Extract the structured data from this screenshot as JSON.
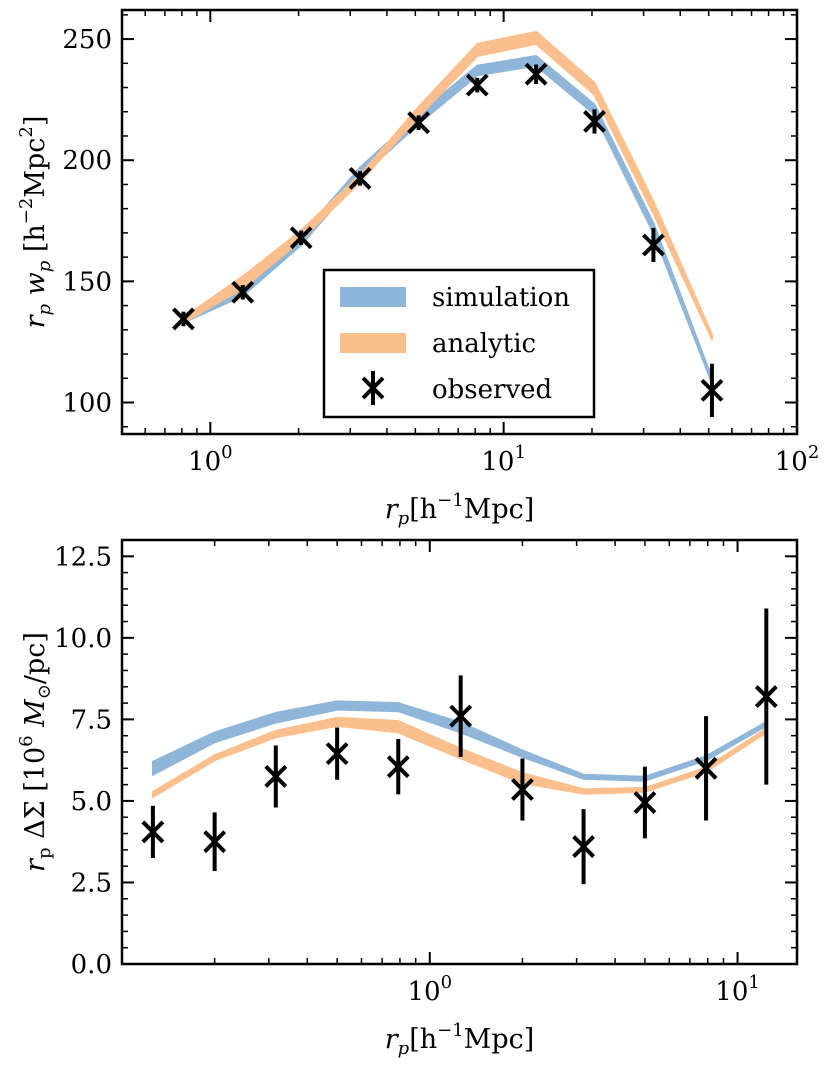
{
  "colors": {
    "simulation": "#8fb6d8",
    "analytic": "#fbbf8e",
    "observed": "#000000"
  },
  "chart_data": [
    {
      "type": "line",
      "xscale": "log",
      "xlim": [
        0.5,
        100
      ],
      "ylim": [
        87,
        262
      ],
      "xlabel": {
        "base": "r",
        "sub": "p",
        "open": "[h",
        "sup": "−1",
        "close": "Mpc]"
      },
      "ylabel": {
        "a": "r",
        "a_sub": "p",
        "b": " w",
        "b_sub": "p",
        "c": " [h",
        "c_sup": "−2",
        "d": "Mpc",
        "d_sup": "2",
        "e": "]"
      },
      "x_ticks": [
        {
          "value": 1,
          "label": "10",
          "exp": "0"
        },
        {
          "value": 10,
          "label": "10",
          "exp": "1"
        },
        {
          "value": 100,
          "label": "10",
          "exp": "2"
        }
      ],
      "y_ticks": [
        {
          "value": 100,
          "label": "100"
        },
        {
          "value": 150,
          "label": "150"
        },
        {
          "value": 200,
          "label": "200"
        },
        {
          "value": 250,
          "label": "250"
        }
      ],
      "legend": {
        "position": "lower-center",
        "entries": [
          "simulation",
          "analytic",
          "observed"
        ]
      },
      "series": [
        {
          "name": "simulation",
          "x": [
            0.81,
            1.29,
            2.04,
            3.24,
            5.13,
            8.13,
            12.9,
            20.4,
            32.4,
            51.3
          ],
          "lower": [
            133,
            144,
            165,
            193,
            215,
            235,
            239,
            219,
            170,
            108
          ],
          "upper": [
            136,
            148,
            169,
            197,
            219,
            239,
            243,
            223,
            174,
            110
          ]
        },
        {
          "name": "analytic",
          "x": [
            0.81,
            1.29,
            2.04,
            3.24,
            5.13,
            8.13,
            12.9,
            20.4,
            32.4,
            51.3
          ],
          "lower": [
            133,
            147,
            167,
            191,
            218,
            243,
            248,
            227,
            178,
            126
          ],
          "upper": [
            135,
            152,
            171,
            194,
            222,
            248,
            253,
            232,
            183,
            128
          ]
        },
        {
          "name": "observed",
          "x": [
            0.81,
            1.29,
            2.04,
            3.24,
            5.13,
            8.13,
            12.9,
            20.4,
            32.4,
            51.3
          ],
          "y": [
            134.5,
            145.5,
            168,
            192.5,
            215.5,
            231,
            235.5,
            216,
            165,
            105
          ],
          "yerr": [
            3,
            3,
            3,
            3,
            3,
            3,
            4,
            5,
            7,
            11
          ]
        }
      ]
    },
    {
      "type": "line",
      "xscale": "log",
      "xlim": [
        0.1,
        15.6
      ],
      "ylim": [
        0,
        13
      ],
      "xlabel": {
        "base": "r",
        "sub": "p",
        "open": "[h",
        "sup": "−1",
        "close": "Mpc]"
      },
      "ylabel": {
        "a": "r",
        "a_sub": "p",
        "b": " ΔΣ [10",
        "b_sup": "6",
        "c": " M",
        "c_sub": "⊙",
        "d": "/pc]"
      },
      "x_ticks": [
        {
          "value": 1,
          "label": "10",
          "exp": "0"
        },
        {
          "value": 10,
          "label": "10",
          "exp": "1"
        }
      ],
      "y_ticks": [
        {
          "value": 0,
          "label": "0.0"
        },
        {
          "value": 2.5,
          "label": "2.5"
        },
        {
          "value": 5,
          "label": "5.0"
        },
        {
          "value": 7.5,
          "label": "7.5"
        },
        {
          "value": 10,
          "label": "10.0"
        },
        {
          "value": 12.5,
          "label": "12.5"
        }
      ],
      "series": [
        {
          "name": "simulation",
          "x": [
            0.126,
            0.2,
            0.316,
            0.5,
            0.79,
            1.26,
            2.0,
            3.16,
            5.0,
            7.9,
            12.4
          ],
          "lower": [
            5.8,
            6.8,
            7.4,
            7.8,
            7.75,
            7.1,
            6.35,
            5.68,
            5.62,
            6.25,
            7.3
          ],
          "upper": [
            6.2,
            7.1,
            7.7,
            8.05,
            8.0,
            7.4,
            6.55,
            5.8,
            5.74,
            6.37,
            7.42
          ]
        },
        {
          "name": "analytic",
          "x": [
            0.126,
            0.2,
            0.316,
            0.5,
            0.79,
            1.26,
            2.0,
            3.16,
            5.0,
            7.9,
            12.4
          ],
          "lower": [
            5.12,
            6.25,
            6.95,
            7.3,
            7.1,
            6.3,
            5.55,
            5.22,
            5.28,
            5.9,
            7.1
          ],
          "upper": [
            5.28,
            6.4,
            7.15,
            7.55,
            7.45,
            6.6,
            5.85,
            5.36,
            5.4,
            6.02,
            7.22
          ]
        },
        {
          "name": "observed",
          "x": [
            0.126,
            0.2,
            0.316,
            0.5,
            0.79,
            1.26,
            2.0,
            3.16,
            5.0,
            7.9,
            12.4
          ],
          "y": [
            4.05,
            3.75,
            5.75,
            6.45,
            6.05,
            7.6,
            5.35,
            3.6,
            4.95,
            6.0,
            8.2
          ],
          "yerr": [
            0.8,
            0.9,
            0.95,
            0.8,
            0.85,
            1.25,
            0.95,
            1.15,
            1.1,
            1.6,
            2.7
          ]
        }
      ]
    }
  ]
}
